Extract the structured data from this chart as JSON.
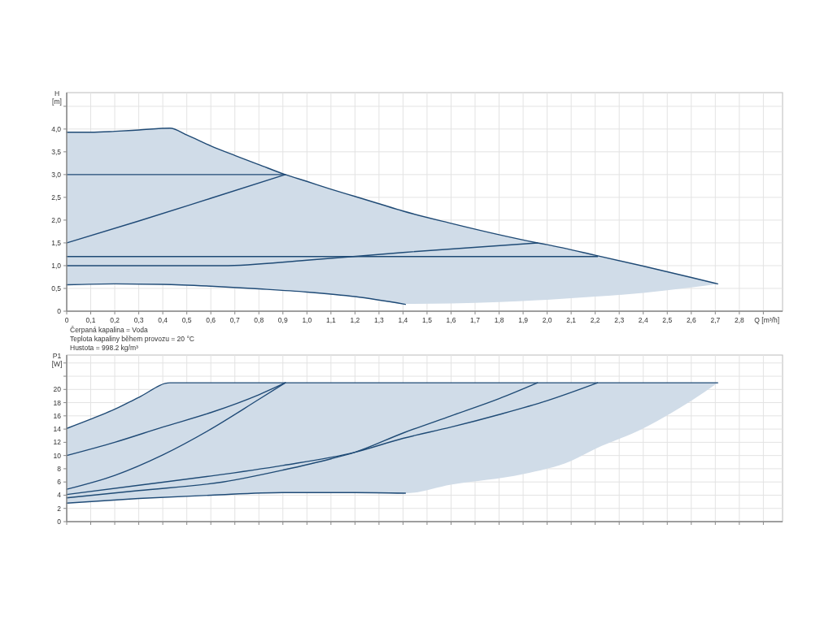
{
  "chart_data": [
    {
      "type": "line",
      "ylabel": "H\n[m]",
      "xlabel": "Q [m³/h]",
      "grid": true,
      "annotations": [
        "Čerpaná kapalina = Voda",
        "Teplota kapaliny během provozu = 20 °C",
        "Hustota = 998.2 kg/m³"
      ],
      "xlim": [
        0,
        2.98
      ],
      "ylim": [
        0,
        4.8
      ],
      "xticks": [
        0,
        {
          "value": 0.1,
          "label": "0,1"
        },
        {
          "value": 0.2,
          "label": "0,2"
        },
        {
          "value": 0.3,
          "label": "0,3"
        },
        {
          "value": 0.4,
          "label": "0,4"
        },
        {
          "value": 0.5,
          "label": "0,5"
        },
        {
          "value": 0.6,
          "label": "0,6"
        },
        {
          "value": 0.7,
          "label": "0,7"
        },
        {
          "value": 0.8,
          "label": "0,8"
        },
        {
          "value": 0.9,
          "label": "0,9"
        },
        {
          "value": 1.0,
          "label": "1,0"
        },
        {
          "value": 1.1,
          "label": "1,1"
        },
        {
          "value": 1.2,
          "label": "1,2"
        },
        {
          "value": 1.3,
          "label": "1,3"
        },
        {
          "value": 1.4,
          "label": "1,4"
        },
        {
          "value": 1.5,
          "label": "1,5"
        },
        {
          "value": 1.6,
          "label": "1,6"
        },
        {
          "value": 1.7,
          "label": "1,7"
        },
        {
          "value": 1.8,
          "label": "1,8"
        },
        {
          "value": 1.9,
          "label": "1,9"
        },
        {
          "value": 2.0,
          "label": "2,0"
        },
        {
          "value": 2.1,
          "label": "2,1"
        },
        {
          "value": 2.2,
          "label": "2,2"
        },
        {
          "value": 2.3,
          "label": "2,3"
        },
        {
          "value": 2.4,
          "label": "2,4"
        },
        {
          "value": 2.5,
          "label": "2,5"
        },
        {
          "value": 2.6,
          "label": "2,6"
        },
        {
          "value": 2.7,
          "label": "2,7"
        },
        {
          "value": 2.8,
          "label": "2,8"
        },
        {
          "value": 2.9,
          "label": null
        }
      ],
      "yticks": [
        0,
        {
          "value": 0.5,
          "label": "0,5"
        },
        {
          "value": 1.0,
          "label": "1,0"
        },
        {
          "value": 1.5,
          "label": "1,5"
        },
        {
          "value": 2.0,
          "label": "2,0"
        },
        {
          "value": 2.5,
          "label": "2,5"
        },
        {
          "value": 3.0,
          "label": "3,0"
        },
        {
          "value": 3.5,
          "label": "3,5"
        },
        {
          "value": 4.0,
          "label": "4,0"
        },
        {
          "value": 4.5,
          "label": null
        }
      ],
      "series": [
        {
          "color": "#1f4a75",
          "x": [
            0,
            0.1,
            0.2,
            0.3,
            0.43,
            0.5,
            0.6,
            0.7,
            0.8,
            0.91,
            1.0,
            1.1,
            1.2,
            1.3,
            1.4,
            1.6,
            1.8,
            1.96,
            2.0,
            2.2,
            2.4,
            2.6,
            2.71
          ],
          "values": [
            3.93,
            3.93,
            3.95,
            3.98,
            4.02,
            3.87,
            3.63,
            3.42,
            3.22,
            3.0,
            2.85,
            2.68,
            2.52,
            2.36,
            2.2,
            1.93,
            1.68,
            1.5,
            1.46,
            1.23,
            0.99,
            0.74,
            0.6
          ],
          "upper": [
            3.93,
            3.93,
            3.95,
            3.98,
            4.02,
            3.87,
            3.63,
            3.42,
            3.22,
            3.0,
            2.85,
            2.68,
            2.52,
            2.36,
            2.2,
            1.93,
            1.68,
            1.5,
            1.46,
            1.23,
            0.99,
            0.74,
            0.6
          ],
          "lower": [
            0.58,
            0.59,
            0.6,
            0.6,
            0.59,
            0.57,
            0.55,
            0.52,
            0.49,
            0.45,
            0.42,
            0.37,
            0.32,
            0.24,
            0.16,
            0.17,
            0.2,
            0.24,
            0.25,
            0.32,
            0.4,
            0.52,
            0.6
          ]
        },
        {
          "color": "#1f4a76",
          "x": [
            0,
            0.91
          ],
          "values": [
            3.0,
            3.0
          ]
        },
        {
          "color": "#1f4a77",
          "x": [
            0,
            0.3,
            0.6,
            0.91
          ],
          "values": [
            1.5,
            1.98,
            2.48,
            3.0
          ]
        },
        {
          "color": "#1f4b75",
          "x": [
            0,
            2.21
          ],
          "values": [
            1.2,
            1.2
          ]
        },
        {
          "color": "#1f4b76",
          "x": [
            0,
            0.65,
            1.0,
            1.4,
            1.96
          ],
          "values": [
            1.0,
            1.0,
            1.12,
            1.29,
            1.5
          ]
        },
        {
          "color": "#1f4b77",
          "x": [
            0,
            0.2,
            0.4,
            0.6,
            0.8,
            1.0,
            1.2,
            1.41
          ],
          "values": [
            0.58,
            0.6,
            0.59,
            0.55,
            0.49,
            0.42,
            0.32,
            0.15
          ]
        }
      ]
    },
    {
      "type": "line",
      "ylabel": "P1\n[W]",
      "grid": true,
      "tick_labels": "y",
      "xlim": [
        0,
        2.98
      ],
      "ylim": [
        0,
        25.2
      ],
      "xticks": [
        0,
        0.1,
        0.2,
        0.3,
        0.4,
        0.5,
        0.6,
        0.7,
        0.8,
        0.9,
        1.0,
        1.1,
        1.2,
        1.3,
        1.4,
        1.5,
        1.6,
        1.7,
        1.8,
        1.9,
        2.0,
        2.1,
        2.2,
        2.3,
        2.4,
        2.5,
        2.6,
        2.7,
        2.8,
        2.9
      ],
      "yticks": [
        0,
        2,
        4,
        6,
        8,
        10,
        12,
        14,
        16,
        18,
        20,
        {
          "value": 22,
          "label": null
        },
        {
          "value": 24,
          "label": null
        }
      ],
      "series": [
        {
          "color": "#1f4a75",
          "x": [
            0,
            0.1,
            0.2,
            0.3,
            0.43,
            0.6,
            0.9,
            1.2,
            1.41,
            1.6,
            1.9,
            2.1,
            2.2,
            2.4,
            2.6,
            2.71
          ],
          "values": [
            14.1,
            15.5,
            17,
            18.8,
            21,
            21,
            21,
            21,
            21,
            21,
            21,
            21,
            21,
            21,
            21,
            21
          ],
          "upper": [
            14.1,
            15.5,
            17,
            18.8,
            21,
            21,
            21,
            21,
            21,
            21,
            21,
            21,
            21,
            21,
            21,
            21
          ],
          "lower": [
            2.8,
            3.1,
            3.3,
            3.5,
            3.7,
            4.0,
            4.4,
            4.4,
            4.3,
            5.6,
            7.2,
            9.2,
            11,
            14.1,
            18.3,
            21
          ]
        },
        {
          "color": "#1f4a76",
          "x": [
            0,
            0.2,
            0.4,
            0.6,
            0.8,
            0.91
          ],
          "values": [
            10,
            12,
            14.3,
            16.5,
            19.2,
            21
          ]
        },
        {
          "color": "#1f4a77",
          "x": [
            0,
            0.2,
            0.4,
            0.6,
            0.8,
            0.91
          ],
          "values": [
            4.9,
            7,
            10.1,
            14,
            18.5,
            21
          ]
        },
        {
          "color": "#1f4b75",
          "x": [
            0,
            0.3,
            0.65,
            0.9,
            1.1,
            1.2,
            1.4,
            1.6,
            1.8,
            1.96
          ],
          "values": [
            3.6,
            4.7,
            6.0,
            7.8,
            9.5,
            10.5,
            13.4,
            16,
            18.6,
            21
          ]
        },
        {
          "color": "#1f4b76",
          "x": [
            0,
            0.3,
            0.6,
            0.9,
            1.2,
            1.4,
            1.6,
            1.8,
            2.0,
            2.21
          ],
          "values": [
            4.1,
            5.5,
            6.9,
            8.5,
            10.5,
            12.6,
            14.3,
            16.2,
            18.3,
            21
          ]
        },
        {
          "color": "#1f4b77",
          "x": [
            0,
            0.3,
            0.6,
            0.9,
            1.2,
            1.41
          ],
          "values": [
            2.8,
            3.5,
            4.0,
            4.4,
            4.4,
            4.3
          ]
        }
      ]
    }
  ]
}
